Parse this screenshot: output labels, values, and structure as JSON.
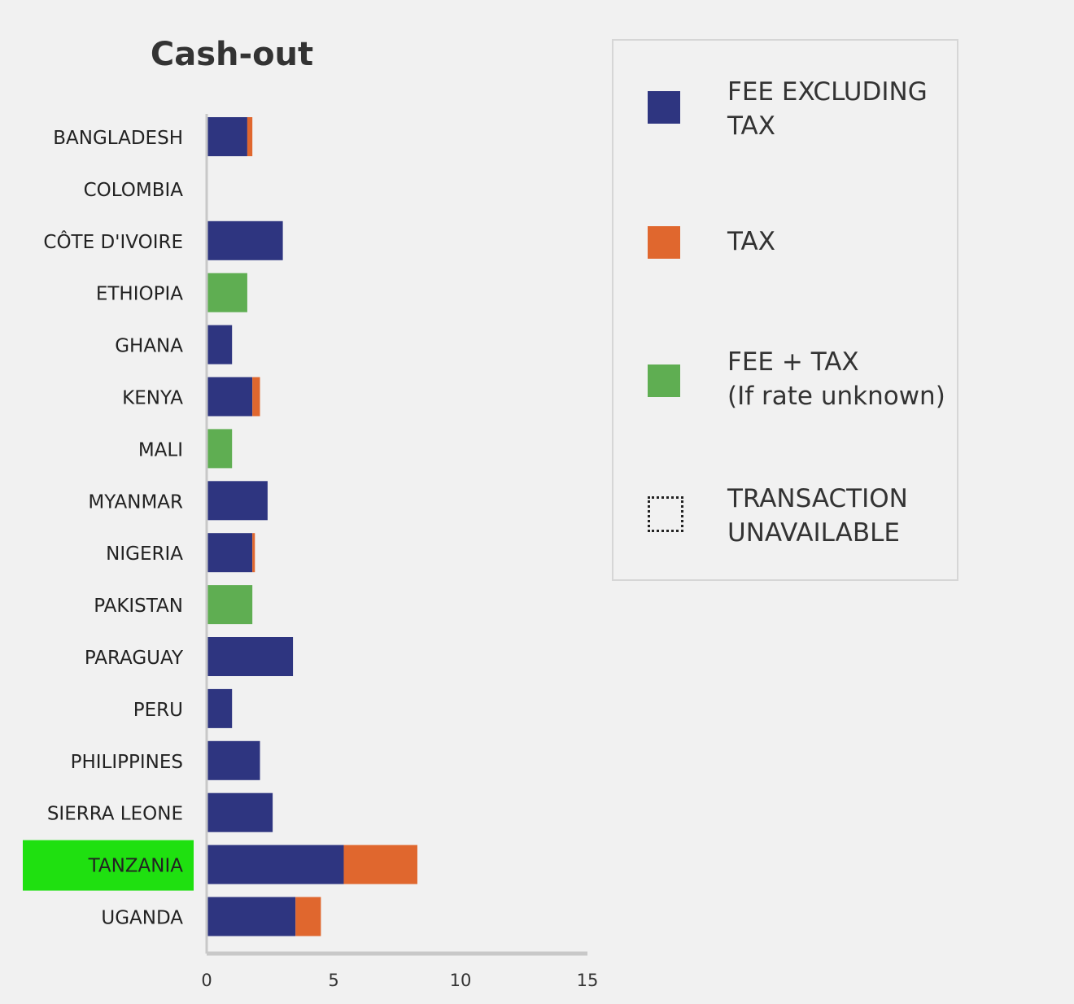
{
  "chart_data": {
    "type": "bar",
    "orientation": "horizontal",
    "stacked": true,
    "title": "Cash-out",
    "categories": [
      "BANGLADESH",
      "COLOMBIA",
      "CÔTE D'IVOIRE",
      "ETHIOPIA",
      "GHANA",
      "KENYA",
      "MALI",
      "MYANMAR",
      "NIGERIA",
      "PAKISTAN",
      "PARAGUAY",
      "PERU",
      "PHILIPPINES",
      "SIERRA LEONE",
      "TANZANIA",
      "UGANDA"
    ],
    "series": [
      {
        "name": "FEE EXCLUDING TAX",
        "color": "#2e3580",
        "values": [
          1.6,
          null,
          3.0,
          0,
          1.0,
          1.8,
          0,
          2.4,
          1.8,
          0,
          3.4,
          1.0,
          2.1,
          2.6,
          5.4,
          3.5
        ]
      },
      {
        "name": "TAX",
        "color": "#e0672e",
        "values": [
          0.2,
          null,
          0,
          0,
          0,
          0.3,
          0,
          0,
          0.1,
          0,
          0,
          0,
          0,
          0,
          2.9,
          1.0
        ]
      },
      {
        "name": "FEE + TAX (If rate unknown)",
        "color": "#5fae52",
        "values": [
          0,
          null,
          0,
          1.6,
          0,
          0,
          1.0,
          0,
          0,
          1.8,
          0,
          0,
          0,
          0,
          0,
          0
        ]
      }
    ],
    "highlighted_category": "TANZANIA",
    "highlight_color": "#1fe010",
    "xlim": [
      0,
      15
    ],
    "xticks": [
      0,
      5,
      10,
      15
    ],
    "legend_position": "right"
  },
  "legend": {
    "fee_excluding_tax": "FEE EXCLUDING\nTAX",
    "tax": "TAX",
    "fee_plus_tax": "FEE + TAX\n(If rate unknown)",
    "unavailable": "TRANSACTION\nUNAVAILABLE"
  }
}
